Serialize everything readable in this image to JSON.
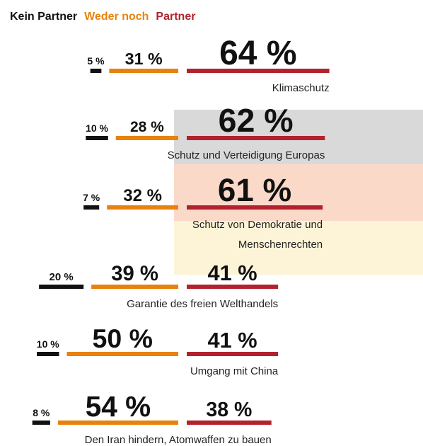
{
  "chart_data": {
    "type": "bar",
    "categories": [
      "Klimaschutz",
      "Schutz und Verteidigung Europas",
      "Schutz von Demokratie und Menschenrechten",
      "Garantie des freien Welthandels",
      "Umgang mit China",
      "Den Iran hindern, Atomwaffen zu bauen"
    ],
    "series": [
      {
        "name": "Kein Partner",
        "color": "#111111",
        "values": [
          5,
          10,
          7,
          20,
          10,
          8
        ],
        "value_labels": [
          "5 %",
          "10 %",
          "7 %",
          "20 %",
          "10 %",
          "8 %"
        ]
      },
      {
        "name": "Weder noch",
        "color": "#e8820c",
        "values": [
          31,
          28,
          32,
          39,
          50,
          54
        ],
        "value_labels": [
          "31 %",
          "28 %",
          "32 %",
          "39 %",
          "50 %",
          "54 %"
        ]
      },
      {
        "name": "Partner",
        "color": "#b3212e",
        "values": [
          64,
          62,
          61,
          41,
          41,
          38
        ],
        "value_labels": [
          "64 %",
          "62 %",
          "61 %",
          "41 %",
          "41 %",
          "38 %"
        ]
      }
    ]
  }
}
